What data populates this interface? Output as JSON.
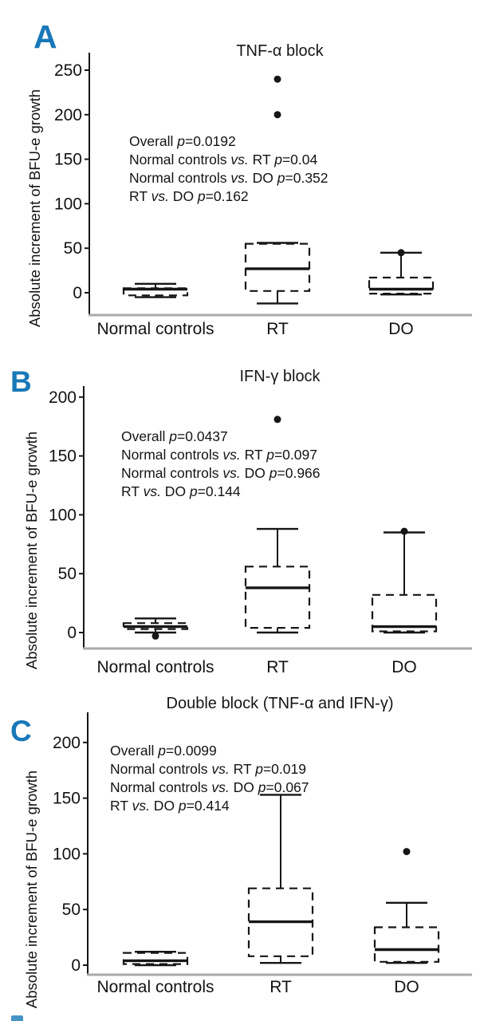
{
  "colors": {
    "panel_letter_blue": "#1878b8",
    "axis_black": "#161616",
    "baseline_gray": "#a9a9a9"
  },
  "chart_data": [
    {
      "type": "box",
      "panel_label": "A",
      "title": "TNF-α block",
      "ylabel": "Absolute increment of BFU-e growth",
      "xlabel": "",
      "categories": [
        "Normal controls",
        "RT",
        "DO"
      ],
      "yticks": [
        0,
        50,
        100,
        150,
        200,
        250
      ],
      "ylim": [
        -25,
        268
      ],
      "grid": false,
      "legend": "none",
      "annotations": [
        "Overall p=0.0192",
        "Normal controls vs. RT p=0.04",
        "Normal controls vs. DO p=0.352",
        "RT vs. DO p=0.162"
      ],
      "series": [
        {
          "name": "Normal controls",
          "whisker_low": -5,
          "q1": -3,
          "median": 4,
          "q3": 5,
          "whisker_high": 10,
          "outliers": []
        },
        {
          "name": "RT",
          "whisker_low": -12,
          "q1": 2,
          "median": 27,
          "q3": 55,
          "whisker_high": 56,
          "outliers": [
            200,
            240
          ]
        },
        {
          "name": "DO",
          "whisker_low": -2,
          "q1": -1,
          "median": 4,
          "q3": 17,
          "whisker_high": 45,
          "outliers": [
            45
          ]
        }
      ]
    },
    {
      "type": "box",
      "panel_label": "B",
      "title": "IFN-γ block",
      "ylabel": "Absolute increment of BFU-e growth",
      "xlabel": "",
      "categories": [
        "Normal controls",
        "RT",
        "DO"
      ],
      "yticks": [
        0,
        50,
        100,
        150,
        200
      ],
      "ylim": [
        -13,
        209
      ],
      "grid": false,
      "legend": "none",
      "annotations": [
        "Overall p=0.0437",
        "Normal controls vs. RT p=0.097",
        "Normal controls vs. DO p=0.966",
        "RT vs. DO p=0.144"
      ],
      "series": [
        {
          "name": "Normal controls",
          "whisker_low": 0,
          "q1": 3,
          "median": 5,
          "q3": 8,
          "whisker_high": 12,
          "outliers": [
            -3
          ]
        },
        {
          "name": "RT",
          "whisker_low": 0,
          "q1": 4,
          "median": 38,
          "q3": 56,
          "whisker_high": 88,
          "outliers": [
            181
          ]
        },
        {
          "name": "DO",
          "whisker_low": 0,
          "q1": 1,
          "median": 5,
          "q3": 32,
          "whisker_high": 85,
          "outliers": [
            86
          ]
        }
      ]
    },
    {
      "type": "box",
      "panel_label": "C",
      "title": "Double block (TNF-α and IFN-γ)",
      "ylabel": "Absolute increment of BFU-e growth",
      "xlabel": "",
      "categories": [
        "Normal controls",
        "RT",
        "DO"
      ],
      "yticks": [
        0,
        50,
        100,
        150,
        200
      ],
      "ylim": [
        -9,
        227
      ],
      "grid": false,
      "legend": "none",
      "annotations": [
        "Overall p=0.0099",
        "Normal controls vs. RT p=0.019",
        "Normal controls vs. DO p=0.067",
        "RT vs. DO p=0.414"
      ],
      "series": [
        {
          "name": "Normal controls",
          "whisker_low": 0,
          "q1": 1,
          "median": 4,
          "q3": 11,
          "whisker_high": 12,
          "outliers": []
        },
        {
          "name": "RT",
          "whisker_low": 2,
          "q1": 8,
          "median": 39,
          "q3": 69,
          "whisker_high": 153,
          "outliers": []
        },
        {
          "name": "DO",
          "whisker_low": 2,
          "q1": 3,
          "median": 14,
          "q3": 34,
          "whisker_high": 56,
          "outliers": [
            102
          ]
        }
      ]
    }
  ]
}
